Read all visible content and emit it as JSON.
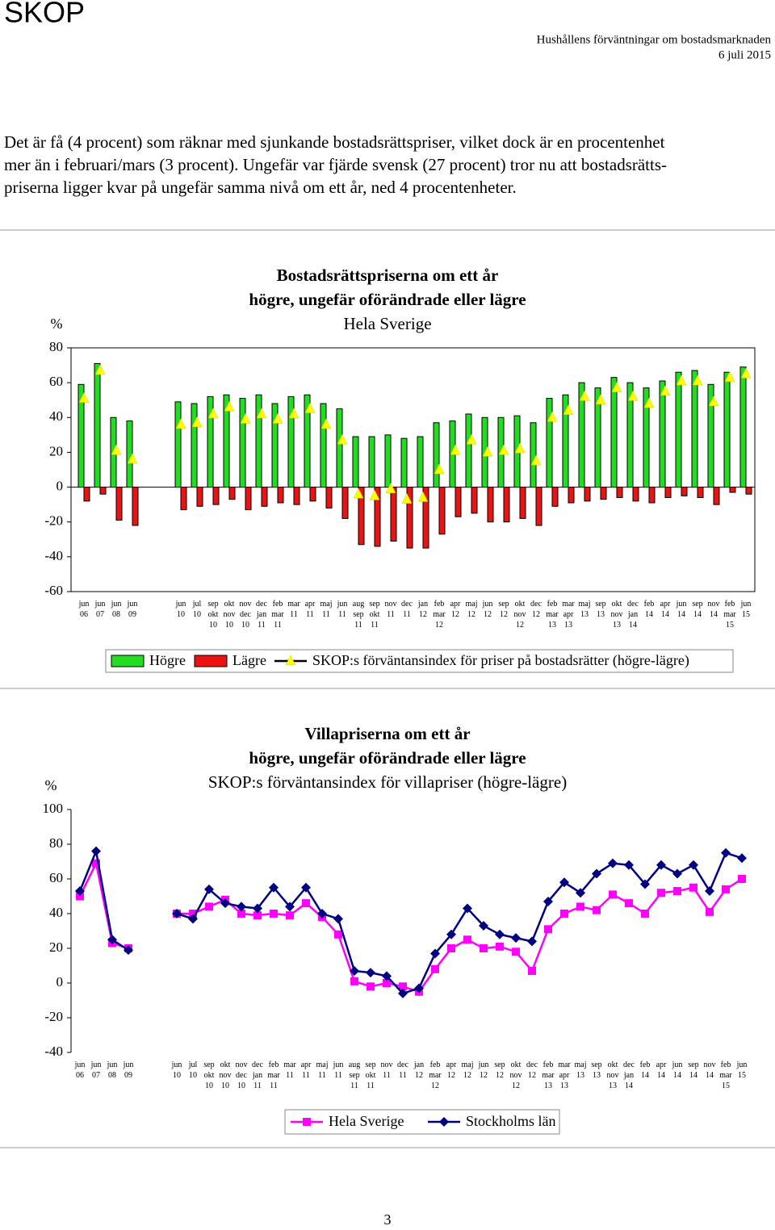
{
  "header": {
    "title": "SKOP",
    "report": "Hushållens förväntningar om bostadsmarknaden",
    "date": "6 juli 2015"
  },
  "paragraph": [
    "Det är få (4 procent) som räknar med sjunkande bostadsrättspriser, vilket dock är en procentenhet",
    "mer än i februari/mars (3 procent). Ungefär var fjärde svensk (27 procent) tror nu att bostadsrätts-",
    "priserna ligger kvar på ungefär samma nivå om ett år, ned 4 procentenheter."
  ],
  "chart_data": [
    {
      "type": "bar",
      "title": "Bostadsrättspriserna om ett år",
      "subtitle": "högre, ungefär oförändrade eller lägre",
      "subtitle2": "Hela Sverige",
      "y_label": "%",
      "categories": [
        "jun\n06",
        "jun\n07",
        "jun\n08",
        "jun\n09",
        null,
        null,
        "jun\n10",
        "jul\n10",
        "sep\nokt\n10",
        "okt\nnov\n10",
        "nov\ndec\n10",
        "dec\njan\n11",
        "feb\nmar\n11",
        "mar\n11",
        "apr\n11",
        "maj\n11",
        "jun\n11",
        "aug\nsep\n11",
        "sep\nokt\n11",
        "nov\n11",
        "dec\n11",
        "jan\n12",
        "feb\nmar\n12",
        "apr\n12",
        "maj\n12",
        "jun\n12",
        "sep\n12",
        "okt\nnov\n12",
        "dec\n12",
        "feb\nmar\n13",
        "mar\napr\n13",
        "maj\n13",
        "sep\n13",
        "okt\nnov\n13",
        "dec\njan\n14",
        "feb\n14",
        "apr\n14",
        "jun\n14",
        "sep\n14",
        "nov\n14",
        "feb\nmar\n15",
        "jun\n15"
      ],
      "series": [
        {
          "name": "Högre",
          "color": "#22dd22",
          "values": [
            59,
            71,
            40,
            38,
            null,
            null,
            49,
            48,
            52,
            53,
            51,
            53,
            48,
            52,
            53,
            48,
            45,
            29,
            29,
            30,
            28,
            29,
            37,
            38,
            42,
            40,
            40,
            41,
            37,
            51,
            53,
            60,
            57,
            63,
            60,
            57,
            61,
            66,
            67,
            59,
            66,
            69
          ]
        },
        {
          "name": "Lägre",
          "color": "#ee1111",
          "values": [
            -8,
            -4,
            -19,
            -22,
            null,
            null,
            -13,
            -11,
            -10,
            -7,
            -13,
            -11,
            -9,
            -10,
            -8,
            -12,
            -18,
            -33,
            -34,
            -31,
            -35,
            -35,
            -27,
            -17,
            -15,
            -20,
            -20,
            -18,
            -22,
            -11,
            -9,
            -8,
            -7,
            -6,
            -8,
            -9,
            -6,
            -5,
            -6,
            -10,
            -3,
            -4
          ]
        },
        {
          "name": "SKOP:s förväntansindex för priser på bostadsrätter (högre-lägre)",
          "type": "line",
          "color": "#ffff00",
          "line_color": "#000000",
          "marker": "triangle",
          "values": [
            51,
            67,
            21,
            16,
            null,
            null,
            36,
            37,
            42,
            46,
            39,
            42,
            39,
            42,
            45,
            36,
            27,
            -4,
            -5,
            -1,
            -7,
            -6,
            10,
            21,
            27,
            20,
            21,
            22,
            15,
            40,
            44,
            52,
            50,
            57,
            52,
            48,
            55,
            61,
            61,
            49,
            63,
            65
          ]
        }
      ],
      "ylim": [
        -60,
        80
      ],
      "yticks": [
        -60,
        -40,
        -20,
        0,
        20,
        40,
        60,
        80
      ],
      "legend": "bottom"
    },
    {
      "type": "line",
      "title": "Villapriserna om ett år",
      "subtitle": "högre, ungefär oförändrade eller lägre",
      "subtitle2": "SKOP:s förväntansindex för villapriser (högre-lägre)",
      "y_label": "%",
      "categories": [
        "jun\n06",
        "jun\n07",
        "jun\n08",
        "jun\n09",
        null,
        null,
        "jun\n10",
        "jul\n10",
        "sep\nokt\n10",
        "okt\nnov\n10",
        "nov\ndec\n10",
        "dec\njan\n11",
        "feb\nmar\n11",
        "mar\n11",
        "apr\n11",
        "maj\n11",
        "jun\n11",
        "aug\nsep\n11",
        "sep\nokt\n11",
        "nov\n11",
        "dec\n11",
        "jan\n12",
        "feb\nmar\n12",
        "apr\n12",
        "maj\n12",
        "jun\n12",
        "sep\n12",
        "okt\nnov\n12",
        "dec\n12",
        "feb\nmar\n13",
        "mar\napr\n13",
        "maj\n13",
        "sep\n13",
        "okt\nnov\n13",
        "dec\njan\n14",
        "feb\n14",
        "apr\n14",
        "jun\n14",
        "sep\n14",
        "nov\n14",
        "feb\nmar\n15",
        "jun\n15"
      ],
      "series": [
        {
          "name": "Hela Sverige",
          "color": "#ff00ff",
          "line_color": "#ff00ff",
          "marker": "square",
          "values": [
            50,
            69,
            23,
            20,
            null,
            null,
            40,
            40,
            44,
            48,
            40,
            39,
            40,
            39,
            46,
            38,
            28,
            1,
            -2,
            0,
            -2,
            -5,
            8,
            20,
            25,
            20,
            21,
            18,
            7,
            31,
            40,
            44,
            42,
            51,
            46,
            40,
            52,
            53,
            55,
            41,
            54,
            60
          ]
        },
        {
          "name": "Stockholms län",
          "color": "#000080",
          "line_color": "#000080",
          "marker": "diamond",
          "values": [
            53,
            76,
            25,
            19,
            null,
            null,
            40,
            37,
            54,
            46,
            44,
            43,
            55,
            44,
            55,
            40,
            37,
            7,
            6,
            4,
            -6,
            -3,
            17,
            28,
            43,
            33,
            28,
            26,
            24,
            47,
            58,
            52,
            63,
            69,
            68,
            57,
            68,
            63,
            68,
            53,
            75,
            72
          ]
        }
      ],
      "ylim": [
        -40,
        100
      ],
      "yticks": [
        -40,
        -20,
        0,
        20,
        40,
        60,
        80,
        100
      ],
      "legend": "bottom"
    }
  ],
  "page_number": "3"
}
